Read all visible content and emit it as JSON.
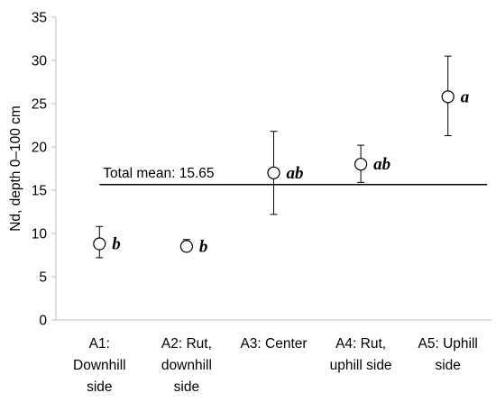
{
  "chart_data": {
    "type": "scatter",
    "ylabel": "Nd, depth 0–100 cm",
    "ylim": [
      0,
      35
    ],
    "yticks": [
      0,
      5,
      10,
      15,
      20,
      25,
      30,
      35
    ],
    "categories": [
      [
        "A1:",
        "Downhill",
        "side"
      ],
      [
        "A2: Rut,",
        "downhill",
        "side"
      ],
      [
        "A3: Center"
      ],
      [
        "A4: Rut,",
        "uphill side"
      ],
      [
        "A5: Uphill",
        "side"
      ]
    ],
    "series": [
      {
        "values": [
          8.8,
          8.5,
          17.0,
          18.0,
          25.8
        ],
        "error_low": [
          7.2,
          7.9,
          12.2,
          15.9,
          21.3
        ],
        "error_high": [
          10.8,
          9.3,
          21.8,
          20.2,
          30.5
        ],
        "labels": [
          "b",
          "b",
          "ab",
          "ab",
          "a"
        ]
      }
    ],
    "mean_line": {
      "value": 15.65,
      "label": "Total mean: 15.65",
      "x_from": 0.5,
      "x_to": 4.95
    },
    "grid": false,
    "marker": "open-circle"
  }
}
